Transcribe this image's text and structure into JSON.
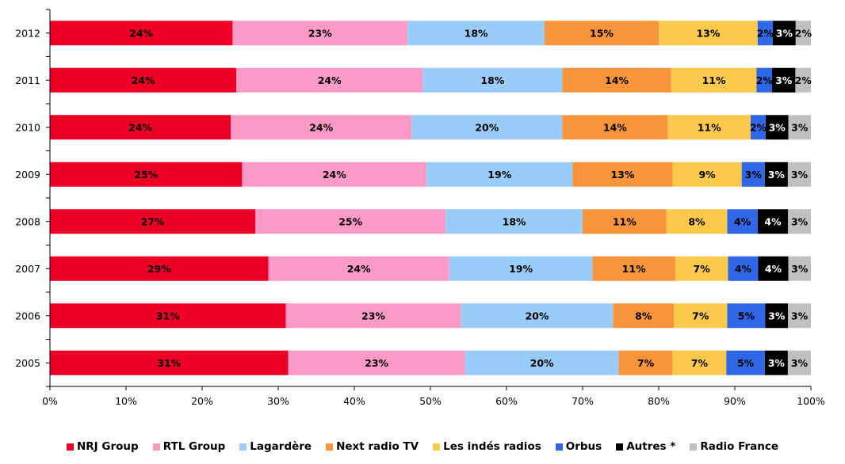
{
  "chart_data": {
    "type": "bar",
    "orientation": "horizontal",
    "stacked": "percent",
    "categories": [
      "2012",
      "2011",
      "2010",
      "2009",
      "2008",
      "2007",
      "2006",
      "2005"
    ],
    "series": [
      {
        "name": "NRJ Group",
        "color": "#ee0026",
        "values": [
          24,
          24,
          24,
          25,
          27,
          29,
          31,
          31
        ],
        "labels": [
          "24%",
          "24%",
          "24%",
          "25%",
          "27%",
          "29%",
          "31%",
          "31%"
        ]
      },
      {
        "name": "RTL Group",
        "color": "#fb99c7",
        "values": [
          23,
          24,
          24,
          24,
          25,
          24,
          23,
          23
        ],
        "labels": [
          "23%",
          "24%",
          "24%",
          "24%",
          "25%",
          "24%",
          "23%",
          "23%"
        ]
      },
      {
        "name": "Lagardère",
        "color": "#99ccf8",
        "values": [
          18,
          18,
          20,
          19,
          18,
          19,
          20,
          20
        ],
        "labels": [
          "18%",
          "18%",
          "20%",
          "19%",
          "18%",
          "19%",
          "20%",
          "20%"
        ]
      },
      {
        "name": "Next radio TV",
        "color": "#f8953a",
        "values": [
          15,
          14,
          14,
          13,
          11,
          11,
          8,
          7
        ],
        "labels": [
          "15%",
          "14%",
          "14%",
          "13%",
          "11%",
          "11%",
          "8%",
          "7%"
        ]
      },
      {
        "name": "Les indés radios",
        "color": "#fcc94a",
        "values": [
          13,
          11,
          11,
          9,
          8,
          7,
          7,
          7
        ],
        "labels": [
          "13%",
          "11%",
          "11%",
          "9%",
          "8%",
          "7%",
          "7%",
          "7%"
        ]
      },
      {
        "name": "Orbus",
        "color": "#2f67e6",
        "values": [
          2,
          2,
          2,
          3,
          4,
          4,
          5,
          5
        ],
        "labels": [
          "2%",
          "2%",
          "2%",
          "3%",
          "4%",
          "4%",
          "5%",
          "5%"
        ]
      },
      {
        "name": "Autres *",
        "color": "#000000",
        "values": [
          3,
          3,
          3,
          3,
          4,
          4,
          3,
          3
        ],
        "labels": [
          "3%",
          "3%",
          "3%",
          "3%",
          "4%",
          "4%",
          "3%",
          "3%"
        ]
      },
      {
        "name": "Radio France",
        "color": "#c0c0c0",
        "values": [
          2,
          2,
          3,
          3,
          3,
          3,
          3,
          3
        ],
        "labels": [
          "2%",
          "2%",
          "3%",
          "3%",
          "3%",
          "3%",
          "3%",
          "3%"
        ]
      }
    ],
    "xlim": [
      0,
      100
    ],
    "xticks": [
      "0%",
      "10%",
      "20%",
      "30%",
      "40%",
      "50%",
      "60%",
      "70%",
      "80%",
      "90%",
      "100%"
    ],
    "grid": false,
    "legend_position": "bottom"
  }
}
